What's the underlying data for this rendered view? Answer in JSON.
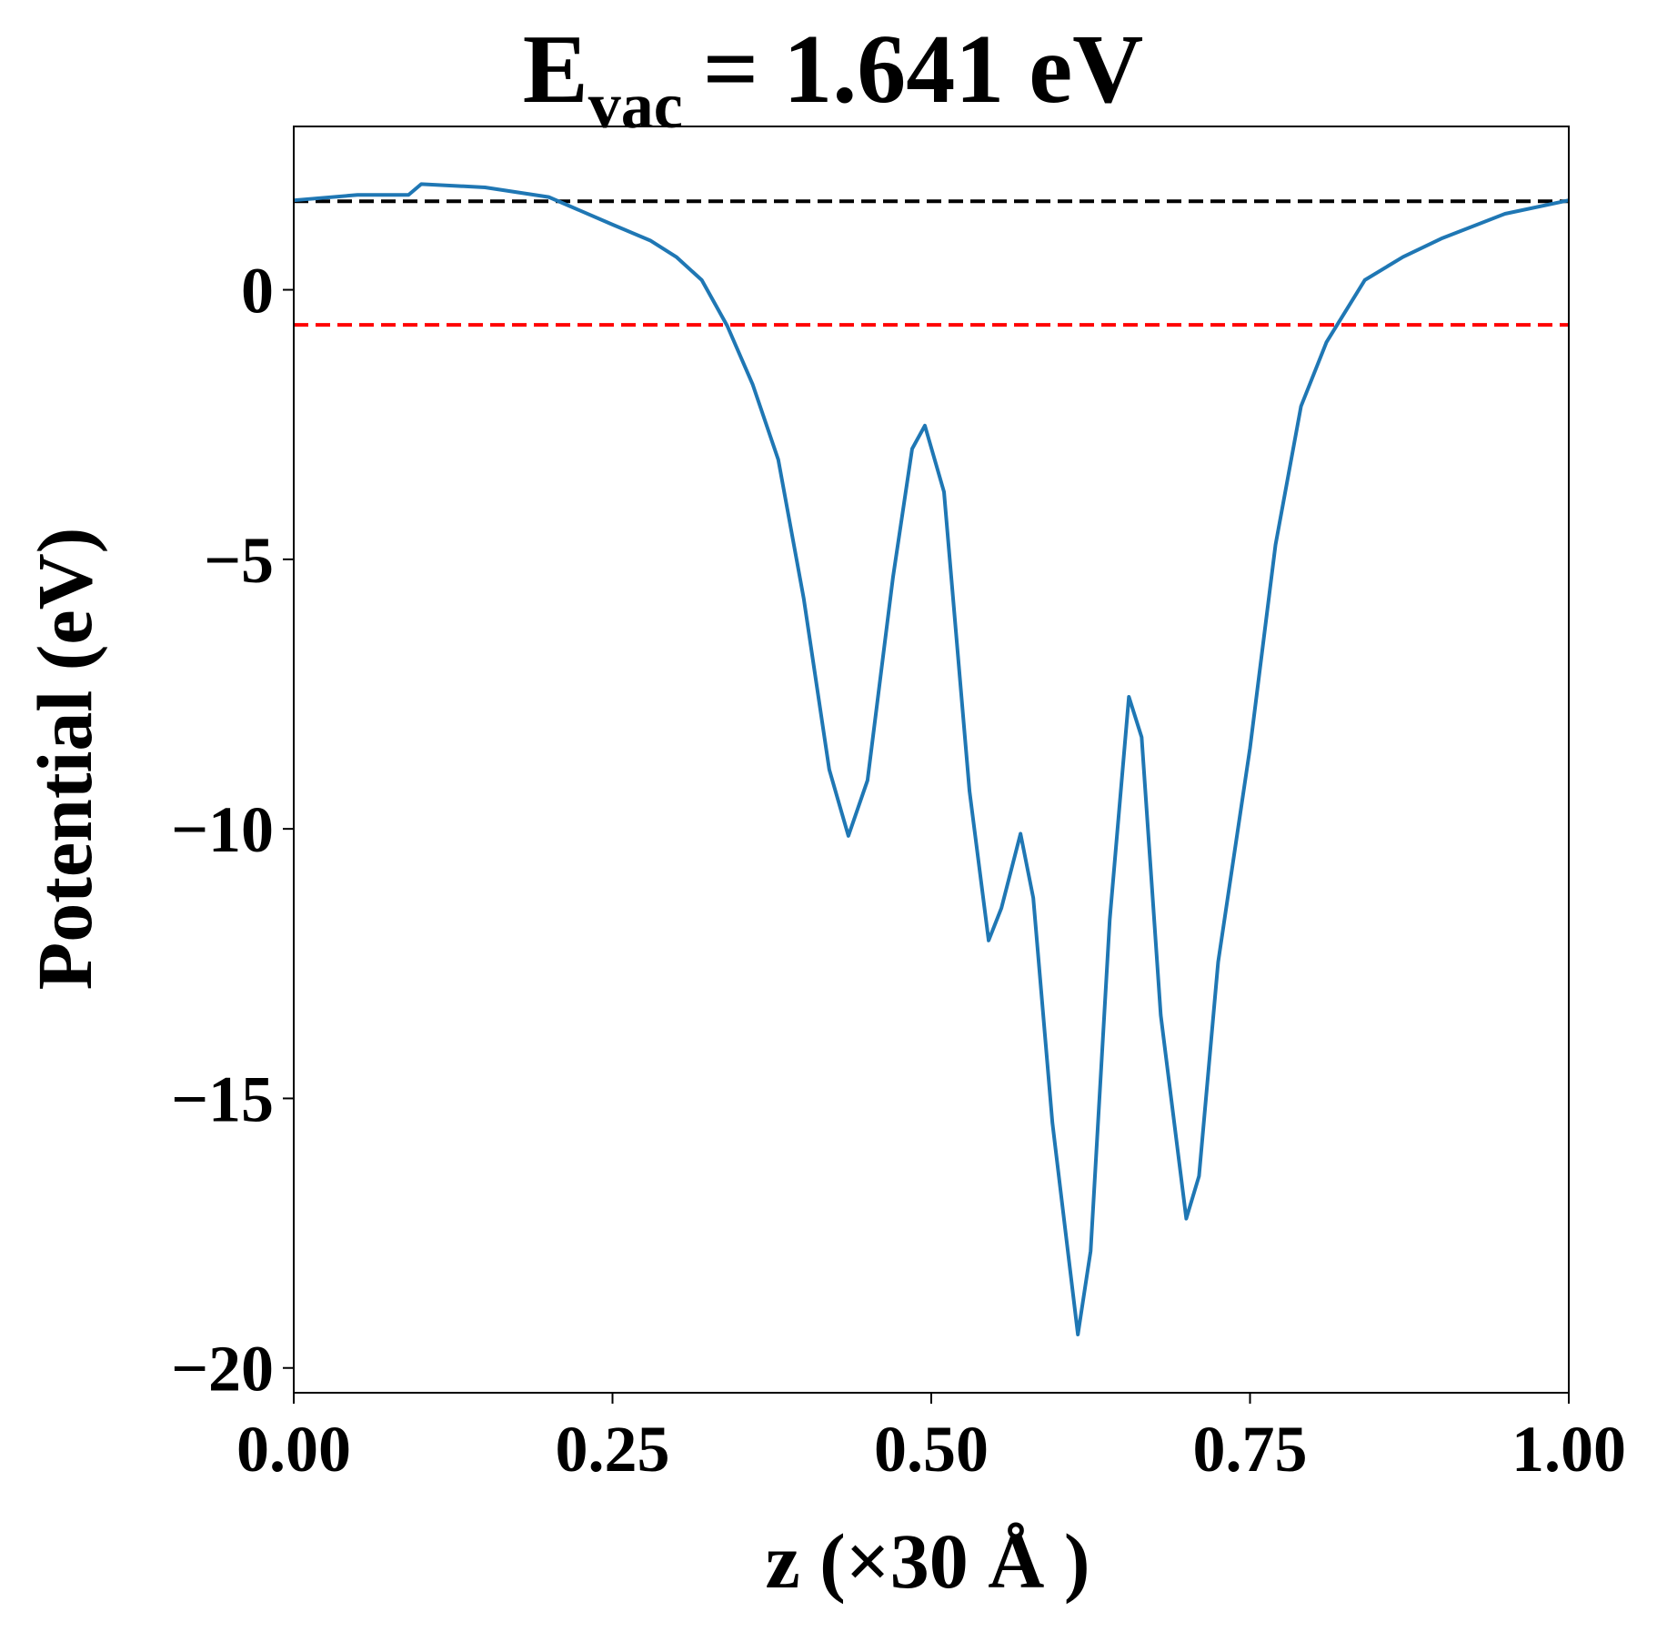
{
  "chart_data": {
    "type": "line",
    "title": {
      "main": "E",
      "sub": "vac",
      "rest": "= 1.641 eV"
    },
    "x_label": "z (×30 Å )",
    "y_label": "Potential (eV)",
    "x": [
      0,
      0.05,
      0.09,
      0.1,
      0.15,
      0.2,
      0.25,
      0.28,
      0.3,
      0.32,
      0.34,
      0.36,
      0.38,
      0.4,
      0.42,
      0.435,
      0.45,
      0.47,
      0.485,
      0.495,
      0.51,
      0.53,
      0.545,
      0.555,
      0.57,
      0.58,
      0.595,
      0.615,
      0.625,
      0.64,
      0.655,
      0.665,
      0.68,
      0.7,
      0.71,
      0.725,
      0.75,
      0.77,
      0.79,
      0.81,
      0.84,
      0.87,
      0.9,
      0.95,
      1.0
    ],
    "series": [
      {
        "name": "Potential",
        "color": "#1f77b4",
        "values": [
          1.66,
          1.76,
          1.76,
          1.96,
          1.9,
          1.72,
          1.21,
          0.91,
          0.61,
          0.18,
          -0.67,
          -1.76,
          -3.15,
          -5.73,
          -8.9,
          -10.13,
          -9.1,
          -5.33,
          -2.95,
          -2.52,
          -3.75,
          -9.3,
          -12.07,
          -11.47,
          -10.09,
          -11.28,
          -15.45,
          -19.38,
          -17.83,
          -11.68,
          -7.55,
          -8.3,
          -13.46,
          -17.23,
          -16.44,
          -12.47,
          -8.5,
          -4.73,
          -2.16,
          -0.97,
          0.18,
          0.61,
          0.95,
          1.41,
          1.66
        ]
      }
    ],
    "hlines": [
      {
        "value": 1.641,
        "color": "#000000"
      },
      {
        "value": -0.65,
        "color": "#ff0000"
      }
    ],
    "xlim": [
      0,
      1
    ],
    "ylim": [
      -20.46,
      3.03
    ],
    "xticks": [
      {
        "value": 0,
        "label": "0.00"
      },
      {
        "value": 0.25,
        "label": "0.25"
      },
      {
        "value": 0.5,
        "label": "0.50"
      },
      {
        "value": 0.75,
        "label": "0.75"
      },
      {
        "value": 1,
        "label": "1.00"
      }
    ],
    "yticks": [
      {
        "value": 0,
        "label": "0"
      },
      {
        "value": -5,
        "label": "−5"
      },
      {
        "value": -10,
        "label": "−10"
      },
      {
        "value": -15,
        "label": "−15"
      },
      {
        "value": -20,
        "label": "−20"
      }
    ]
  }
}
